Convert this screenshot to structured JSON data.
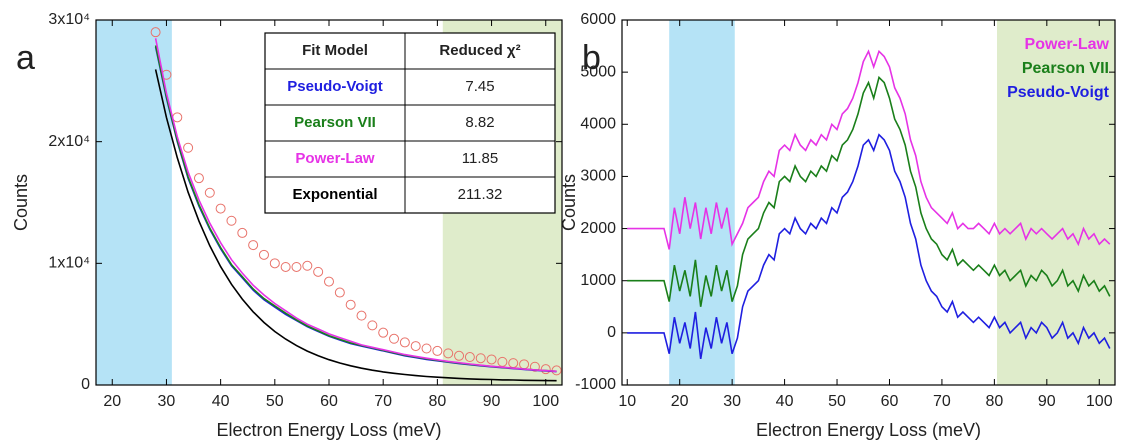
{
  "chart_data": [
    {
      "type": "line",
      "label": "a",
      "xlabel": "Electron Energy Loss (meV)",
      "ylabel": "Counts",
      "xlim": [
        17,
        103
      ],
      "xticks": [
        20,
        30,
        40,
        50,
        60,
        70,
        80,
        90,
        100
      ],
      "ylim": [
        0,
        30000
      ],
      "yticks": [
        0,
        {
          "value": 10000,
          "label": "1x10⁴"
        },
        {
          "value": 20000,
          "label": "2x10⁴"
        },
        {
          "value": 30000,
          "label": "3x10⁴"
        }
      ],
      "shaded_regions": [
        {
          "x": [
            17,
            31
          ],
          "color": "#b5e3f6"
        },
        {
          "x": [
            81,
            103
          ],
          "color": "#dfeccb"
        }
      ],
      "table_header": [
        "Fit Model",
        "Reduced χ²"
      ],
      "x": [
        28,
        30,
        32,
        34,
        36,
        38,
        40,
        42,
        44,
        46,
        48,
        50,
        52,
        54,
        56,
        58,
        60,
        62,
        64,
        66,
        68,
        70,
        72,
        74,
        76,
        78,
        80,
        82,
        84,
        86,
        88,
        90,
        92,
        94,
        96,
        98,
        100,
        102
      ],
      "points": {
        "color": "#e8736b",
        "values": [
          29000,
          25500,
          22000,
          19500,
          17000,
          15800,
          14500,
          13500,
          12500,
          11500,
          10700,
          10000,
          9700,
          9700,
          9800,
          9300,
          8500,
          7600,
          6600,
          5700,
          4900,
          4300,
          3800,
          3500,
          3200,
          3000,
          2800,
          2600,
          2400,
          2300,
          2200,
          2100,
          1900,
          1800,
          1700,
          1500,
          1300,
          1200
        ]
      },
      "series": [
        {
          "name": "Pseudo-Voigt",
          "color": "#1f1fe0",
          "reduced_chi2": 7.45,
          "values": [
            27800,
            23600,
            20000,
            17000,
            14700,
            12800,
            11200,
            9800,
            8800,
            7800,
            7000,
            6400,
            5800,
            5300,
            4800,
            4400,
            4000,
            3700,
            3400,
            3200,
            3000,
            2800,
            2600,
            2400,
            2250,
            2100,
            1990,
            1870,
            1760,
            1670,
            1580,
            1500,
            1420,
            1350,
            1280,
            1210,
            1150,
            1100
          ]
        },
        {
          "name": "Pearson VII",
          "color": "#1a7f1a",
          "reduced_chi2": 8.82,
          "values": [
            27900,
            23700,
            20100,
            17100,
            14800,
            12900,
            11300,
            9900,
            8900,
            7900,
            7100,
            6500,
            5900,
            5350,
            4850,
            4450,
            4050,
            3750,
            3450,
            3250,
            3050,
            2850,
            2650,
            2450,
            2300,
            2150,
            2030,
            1910,
            1800,
            1700,
            1610,
            1530,
            1450,
            1380,
            1310,
            1240,
            1180,
            1130
          ]
        },
        {
          "name": "Power-Law",
          "color": "#e633e6",
          "reduced_chi2": 11.85,
          "values": [
            28500,
            24000,
            20400,
            17500,
            15200,
            13300,
            11700,
            10300,
            9200,
            8200,
            7400,
            6700,
            6100,
            5500,
            5000,
            4600,
            4200,
            3900,
            3600,
            3300,
            3100,
            2900,
            2700,
            2500,
            2350,
            2200,
            2070,
            1940,
            1830,
            1730,
            1630,
            1540,
            1460,
            1380,
            1310,
            1240,
            1180,
            1130
          ]
        },
        {
          "name": "Exponential",
          "color": "#000000",
          "reduced_chi2": 211.32,
          "values": [
            25940,
            22000,
            18670,
            15850,
            13460,
            11440,
            9730,
            8280,
            7060,
            6020,
            5140,
            4400,
            3770,
            3240,
            2790,
            2410,
            2080,
            1810,
            1580,
            1380,
            1220,
            1080,
            960,
            860,
            770,
            700,
            640,
            590,
            540,
            500,
            470,
            450,
            420,
            410,
            390,
            380,
            360,
            350
          ]
        }
      ]
    },
    {
      "type": "line",
      "label": "b",
      "xlabel": "Electron Energy Loss (meV)",
      "ylabel": "Counts",
      "xlim": [
        9,
        103
      ],
      "xticks": [
        10,
        20,
        30,
        40,
        50,
        60,
        70,
        80,
        90,
        100
      ],
      "ylim": [
        -1000,
        6000
      ],
      "yticks": [
        -1000,
        0,
        1000,
        2000,
        3000,
        4000,
        5000,
        6000
      ],
      "legend": "upper right",
      "shaded_regions": [
        {
          "x": [
            18,
            30.5
          ],
          "color": "#b5e3f6"
        },
        {
          "x": [
            80.5,
            103
          ],
          "color": "#dfeccb"
        }
      ],
      "x": [
        10,
        11,
        12,
        13,
        14,
        15,
        16,
        17,
        18,
        19,
        20,
        21,
        22,
        23,
        24,
        25,
        26,
        27,
        28,
        29,
        30,
        31,
        32,
        33,
        34,
        35,
        36,
        37,
        38,
        39,
        40,
        41,
        42,
        43,
        44,
        45,
        46,
        47,
        48,
        49,
        50,
        51,
        52,
        53,
        54,
        55,
        56,
        57,
        58,
        59,
        60,
        61,
        62,
        63,
        64,
        65,
        66,
        67,
        68,
        69,
        70,
        71,
        72,
        73,
        74,
        75,
        76,
        77,
        78,
        79,
        80,
        81,
        82,
        83,
        84,
        85,
        86,
        87,
        88,
        89,
        90,
        91,
        92,
        93,
        94,
        95,
        96,
        97,
        98,
        99,
        100,
        101,
        102
      ],
      "series": [
        {
          "name": "Power-Law",
          "color": "#e633e6",
          "values": [
            2000,
            2000,
            2000,
            2000,
            2000,
            2000,
            2000,
            2000,
            1600,
            2400,
            1900,
            2600,
            2000,
            2500,
            1800,
            2400,
            1900,
            2500,
            2000,
            2400,
            1700,
            1900,
            2100,
            2400,
            2500,
            2600,
            2900,
            3100,
            3000,
            3500,
            3600,
            3500,
            3800,
            3600,
            3500,
            3700,
            3600,
            3800,
            3700,
            4000,
            3900,
            4200,
            4300,
            4500,
            4800,
            5200,
            5400,
            5100,
            5400,
            5300,
            5100,
            4700,
            4500,
            4200,
            3700,
            3400,
            2900,
            2600,
            2400,
            2300,
            2200,
            2100,
            2300,
            2000,
            2100,
            2000,
            2000,
            2100,
            2000,
            1900,
            2100,
            1900,
            2000,
            1900,
            2000,
            2100,
            1800,
            2000,
            1900,
            2000,
            1900,
            1800,
            1900,
            2000,
            1800,
            1900,
            1700,
            2000,
            1800,
            1900,
            1700,
            1800,
            1700
          ]
        },
        {
          "name": "Pearson VII",
          "color": "#1a7f1a",
          "values": [
            1000,
            1000,
            1000,
            1000,
            1000,
            1000,
            1000,
            1000,
            600,
            1300,
            800,
            1200,
            700,
            1400,
            500,
            1100,
            700,
            1300,
            800,
            1200,
            600,
            900,
            1500,
            1800,
            1900,
            2000,
            2300,
            2500,
            2400,
            2900,
            3000,
            2900,
            3200,
            3000,
            2900,
            3100,
            3000,
            3200,
            3100,
            3400,
            3300,
            3600,
            3700,
            3900,
            4200,
            4600,
            4800,
            4500,
            4900,
            4800,
            4500,
            4100,
            3900,
            3600,
            3100,
            2800,
            2300,
            2000,
            1800,
            1700,
            1500,
            1400,
            1600,
            1300,
            1400,
            1300,
            1200,
            1300,
            1200,
            1100,
            1300,
            1100,
            1200,
            1000,
            1100,
            1200,
            900,
            1100,
            1000,
            1200,
            1100,
            900,
            1000,
            1200,
            900,
            1000,
            800,
            1100,
            900,
            1000,
            800,
            900,
            700
          ]
        },
        {
          "name": "Pseudo-Voigt",
          "color": "#1f1fe0",
          "values": [
            0,
            0,
            0,
            0,
            0,
            0,
            0,
            0,
            -400,
            300,
            -200,
            200,
            -300,
            400,
            -500,
            100,
            -300,
            300,
            -200,
            200,
            -400,
            -100,
            500,
            800,
            900,
            1000,
            1300,
            1500,
            1400,
            1900,
            2000,
            1900,
            2200,
            2000,
            1900,
            2100,
            2000,
            2200,
            2100,
            2400,
            2300,
            2600,
            2700,
            2900,
            3200,
            3600,
            3700,
            3500,
            3800,
            3700,
            3500,
            3100,
            2900,
            2600,
            2100,
            1800,
            1300,
            1000,
            800,
            700,
            500,
            400,
            600,
            300,
            400,
            300,
            200,
            300,
            200,
            100,
            300,
            100,
            200,
            0,
            100,
            200,
            -100,
            100,
            0,
            200,
            100,
            -100,
            0,
            200,
            -100,
            0,
            -200,
            100,
            -100,
            0,
            -200,
            -100,
            -300
          ]
        }
      ]
    }
  ]
}
